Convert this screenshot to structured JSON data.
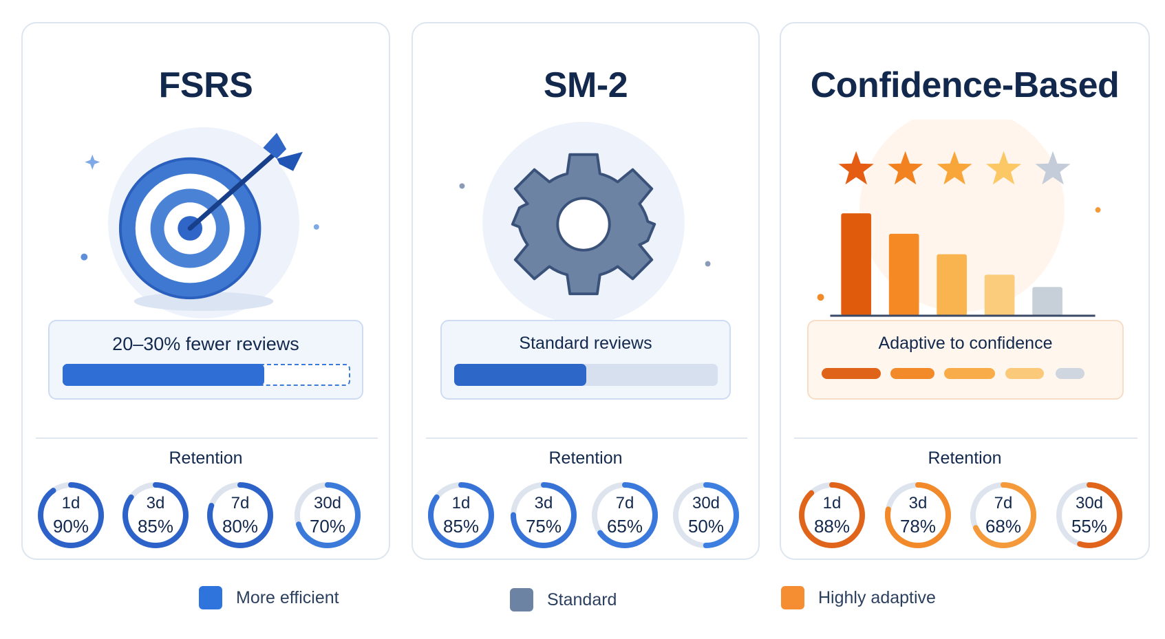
{
  "colors": {
    "blue": "#2f6fd5",
    "slate": "#6d83a4",
    "orange": "#f28a2a",
    "track": "#dde4ee"
  },
  "cards": [
    {
      "title": "FSRS",
      "illustration": "target-icon",
      "summary": "20–30% fewer reviews",
      "bar_fill": 0.7,
      "retention_title": "Retention",
      "retention": [
        {
          "day": "1d",
          "pct": "90%",
          "value": 0.9,
          "color": "#2d62c8"
        },
        {
          "day": "3d",
          "pct": "85%",
          "value": 0.85,
          "color": "#2d62c8"
        },
        {
          "day": "7d",
          "pct": "80%",
          "value": 0.8,
          "color": "#2d62c8"
        },
        {
          "day": "30d",
          "pct": "70%",
          "value": 0.7,
          "color": "#3b7ad9"
        }
      ]
    },
    {
      "title": "SM-2",
      "illustration": "gear-icon",
      "summary": "Standard reviews",
      "bar_fill": 0.5,
      "retention_title": "Retention",
      "retention": [
        {
          "day": "1d",
          "pct": "85%",
          "value": 0.85,
          "color": "#3772d6"
        },
        {
          "day": "3d",
          "pct": "75%",
          "value": 0.75,
          "color": "#3772d6"
        },
        {
          "day": "7d",
          "pct": "65%",
          "value": 0.65,
          "color": "#3a78dc"
        },
        {
          "day": "30d",
          "pct": "50%",
          "value": 0.5,
          "color": "#3d7fe0"
        }
      ]
    },
    {
      "title": "Confidence-Based",
      "illustration": "star-rating-chart-icon",
      "summary": "Adaptive to confidence",
      "confidence_levels": [
        1.0,
        0.8,
        0.6,
        0.4,
        0.2
      ],
      "retention_title": "Retention",
      "retention": [
        {
          "day": "1d",
          "pct": "88%",
          "value": 0.88,
          "color": "#e0651a"
        },
        {
          "day": "3d",
          "pct": "78%",
          "value": 0.78,
          "color": "#f28a2a"
        },
        {
          "day": "7d",
          "pct": "68%",
          "value": 0.68,
          "color": "#f59a3a"
        },
        {
          "day": "30d",
          "pct": "55%",
          "value": 0.55,
          "color": "#e0651a"
        }
      ]
    }
  ],
  "legend": [
    {
      "label": "More efficient",
      "color": "#2f73dc"
    },
    {
      "label": "Standard",
      "color": "#6d83a4"
    },
    {
      "label": "Highly adaptive",
      "color": "#f58d32"
    }
  ]
}
